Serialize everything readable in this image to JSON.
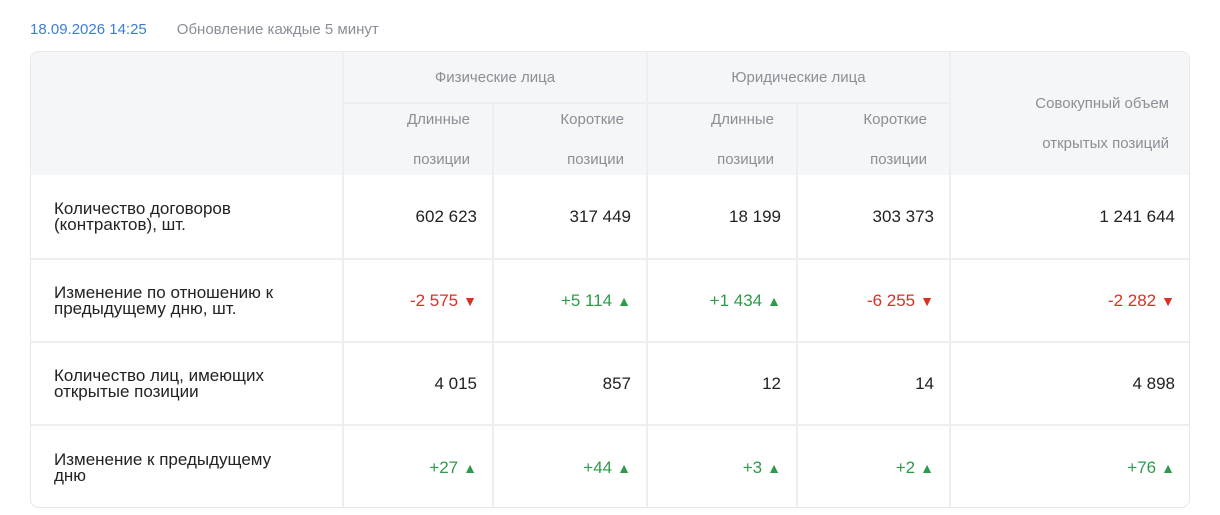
{
  "header": {
    "timestamp": "18.09.2026 14:25",
    "update_note": "Обновление каждые 5 минут"
  },
  "columns": {
    "group_individuals": "Физические лица",
    "group_legal": "Юридические лица",
    "long": "Длинные позиции",
    "long_line1": "Длинные",
    "long_line2": "позиции",
    "short_line1": "Короткие",
    "short_line2": "позиции",
    "total_line1": "Совокупный объем",
    "total_line2": "открытых позиций"
  },
  "rows": [
    {
      "label_line1": "Количество договоров",
      "label_line2": "(контрактов), шт.",
      "values": [
        "602 623",
        "317 449",
        "18 199",
        "303 373",
        "1 241 644"
      ],
      "trend": [
        "none",
        "none",
        "none",
        "none",
        "none"
      ]
    },
    {
      "label_line1": "Изменение по отношению к",
      "label_line2": "предыдущему дню, шт.",
      "values": [
        "-2 575",
        "+5 114",
        "+1 434",
        "-6 255",
        "-2 282"
      ],
      "trend": [
        "down",
        "up",
        "up",
        "down",
        "down"
      ]
    },
    {
      "label_line1": "Количество лиц, имеющих",
      "label_line2": "открытые позиции",
      "values": [
        "4 015",
        "857",
        "12",
        "14",
        "4 898"
      ],
      "trend": [
        "none",
        "none",
        "none",
        "none",
        "none"
      ]
    },
    {
      "label_line1": "Изменение к предыдущему",
      "label_line2": "дню",
      "values": [
        "+27",
        "+44",
        "+3",
        "+2",
        "+76"
      ],
      "trend": [
        "up",
        "up",
        "up",
        "up",
        "up"
      ]
    }
  ],
  "colors": {
    "negative": "#d93025",
    "positive": "#2e9b4b",
    "accent": "#3b7fd4"
  },
  "icons": {
    "down": "triangle-down-icon",
    "up": "triangle-up-icon"
  }
}
